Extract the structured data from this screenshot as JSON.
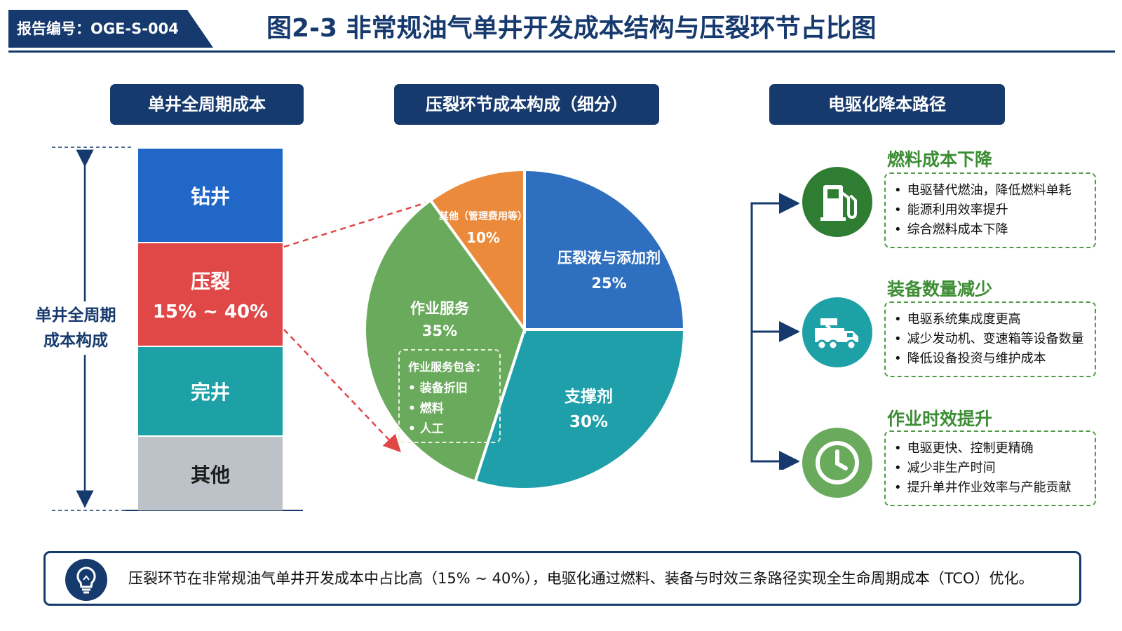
{
  "header": {
    "report_id": "报告编号：OGE-S-004",
    "title": "图2-3 非常规油气单井开发成本结构与压裂环节占比图"
  },
  "sections": {
    "left": "单井全周期成本",
    "middle": "压裂环节成本构成（细分）",
    "right": "电驱化降本路径"
  },
  "stack": {
    "axis_label_line1": "单井全周期",
    "axis_label_line2": "成本构成",
    "segments": [
      {
        "name": "钻井",
        "color": "#2167c8"
      },
      {
        "name": "压裂",
        "range": "15% ~ 40%",
        "color": "#e04848"
      },
      {
        "name": "完井",
        "color": "#1ea1a6"
      },
      {
        "name": "其他",
        "color": "#bdc2c8"
      }
    ]
  },
  "chart_data": {
    "type": "pie",
    "title": "压裂环节成本构成（细分）",
    "slices": [
      {
        "label": "压裂液与添加剂",
        "value": 25,
        "display": "25%",
        "color": "#2f6fbf"
      },
      {
        "label": "支撑剂",
        "value": 30,
        "display": "30%",
        "color": "#1f9faa"
      },
      {
        "label": "作业服务",
        "value": 35,
        "display": "35%",
        "color": "#6aaa5c"
      },
      {
        "label": "其他（管理费用等）",
        "value": 10,
        "display": "10%",
        "color": "#ea8a3a"
      }
    ],
    "service_note": {
      "header": "作业服务包含：",
      "items": [
        "装备折旧",
        "燃料",
        "人工"
      ]
    }
  },
  "paths": [
    {
      "title": "燃料成本下降",
      "icon": "fuel-pump-icon",
      "color": "#2e7d32",
      "bullets": [
        "电驱替代燃油，降低燃料单耗",
        "能源利用效率提升",
        "综合燃料成本下降"
      ]
    },
    {
      "title": "装备数量减少",
      "icon": "truck-icon",
      "color": "#1ea1a6",
      "bullets": [
        "电驱系统集成度更高",
        "减少发动机、变速箱等设备数量",
        "降低设备投资与维护成本"
      ]
    },
    {
      "title": "作业时效提升",
      "icon": "clock-icon",
      "color": "#6aaa5c",
      "bullets": [
        "电驱更快、控制更精确",
        "减少非生产时间",
        "提升单井作业效率与产能贡献"
      ]
    }
  ],
  "summary": {
    "icon": "lightbulb-icon",
    "text": "压裂环节在非常规油气单井开发成本中占比高（15% ~ 40%），电驱化通过燃料、装备与时效三条路径实现全生命周期成本（TCO）优化。"
  }
}
